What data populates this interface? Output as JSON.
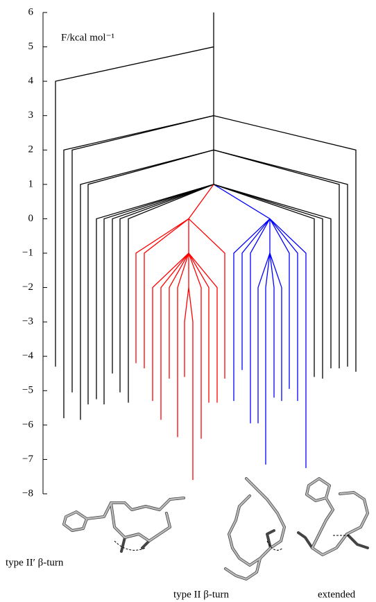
{
  "chart_data": {
    "type": "disconnectivity",
    "ylabel": "F/kcal mol⁻¹",
    "ylim": [
      -8,
      6
    ],
    "yticks": [
      6,
      5,
      4,
      3,
      2,
      1,
      0,
      {
        "value": -1,
        "label": "−1"
      },
      {
        "value": -2,
        "label": "−2"
      },
      {
        "value": -3,
        "label": "−3"
      },
      {
        "value": -4,
        "label": "−4"
      },
      {
        "value": -5,
        "label": "−5"
      },
      {
        "value": -6,
        "label": "−6"
      },
      {
        "value": -7,
        "label": "−7"
      },
      {
        "value": -8,
        "label": "−8"
      }
    ],
    "color": "#000000",
    "tree": {
      "energy": 5,
      "children": [
        {
          "energy": -4.3
        },
        {
          "energy": 3,
          "children": [
            {
              "energy": -5.8
            },
            {
              "energy": -5.05
            },
            {
              "energy": 2,
              "children": [
                {
                  "energy": -5.85
                },
                {
                  "energy": -5.4
                },
                {
                  "energy": 1,
                  "children": [
                    {
                      "energy": -5.25
                    },
                    {
                      "energy": -5.4
                    },
                    {
                      "energy": -4.5
                    },
                    {
                      "energy": -5.05
                    },
                    {
                      "energy": -5.35
                    },
                    {
                      "energy": 0,
                      "color": "#ff0000",
                      "children": [
                        {
                          "energy": -4.2
                        },
                        {
                          "energy": -4.35
                        },
                        {
                          "energy": -1,
                          "children": [
                            {
                              "energy": -5.3
                            },
                            {
                              "energy": -5.85
                            },
                            {
                              "energy": -4.65
                            },
                            {
                              "energy": -6.35
                            },
                            {
                              "energy": -2,
                              "children": [
                                {
                                  "energy": -4.6
                                },
                                {
                                  "energy": -7.6
                                }
                              ]
                            },
                            {
                              "energy": -6.4
                            },
                            {
                              "energy": -5.35
                            },
                            {
                              "energy": -5.35
                            }
                          ]
                        },
                        {
                          "energy": -4.65
                        }
                      ]
                    },
                    {
                      "energy": 0,
                      "color": "#0000ff",
                      "children": [
                        {
                          "energy": -5.3
                        },
                        {
                          "energy": -4.4
                        },
                        {
                          "energy": -5.95
                        },
                        {
                          "energy": -1,
                          "children": [
                            {
                              "energy": -5.95
                            },
                            {
                              "energy": -7.15
                            },
                            {
                              "energy": -5.2
                            },
                            {
                              "energy": -5.3
                            }
                          ]
                        },
                        {
                          "energy": -4.95
                        },
                        {
                          "energy": -5.3
                        },
                        {
                          "energy": -7.25
                        }
                      ]
                    },
                    {
                      "energy": -4.6
                    },
                    {
                      "energy": -4.65
                    },
                    {
                      "energy": -4.35
                    }
                  ]
                },
                {
                  "energy": -4.35
                },
                {
                  "energy": -4.3
                }
              ]
            },
            {
              "energy": -4.45
            }
          ]
        }
      ]
    },
    "structure_labels": [
      "type II′ β-turn",
      "type II β-turn",
      "extended"
    ]
  }
}
